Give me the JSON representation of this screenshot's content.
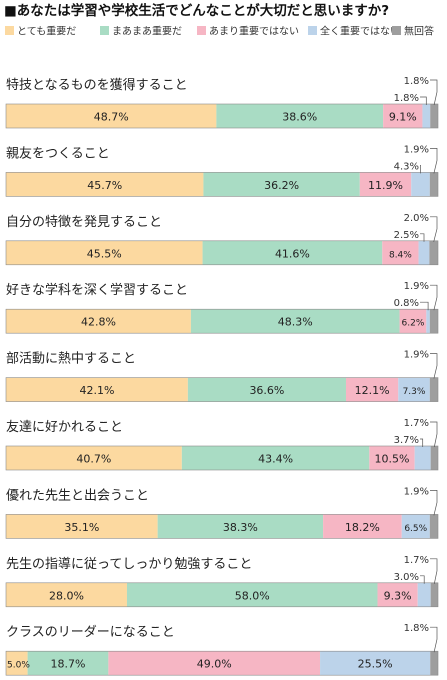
{
  "chart_data": {
    "type": "bar",
    "orientation": "horizontal-stacked-100",
    "title": "■あなたは学習や学校生活でどんなことが大切だと思いますか?",
    "series": [
      {
        "name": "とても重要だ",
        "color": "#fcd9a0"
      },
      {
        "name": "まあまあ重要だ",
        "color": "#a9dcc4"
      },
      {
        "name": "あまり重要ではない",
        "color": "#f6b6c4"
      },
      {
        "name": "全く重要ではない",
        "color": "#bcd3ea"
      },
      {
        "name": "無回答",
        "color": "#9e9e9e"
      }
    ],
    "categories": [
      {
        "label": "特技となるものを獲得すること",
        "values": [
          48.7,
          38.6,
          9.1,
          1.8,
          1.8
        ],
        "labels": [
          "48.7%",
          "38.6%",
          "9.1%",
          "1.8%",
          "1.8%"
        ]
      },
      {
        "label": "親友をつくること",
        "values": [
          45.7,
          36.2,
          11.9,
          4.3,
          1.9
        ],
        "labels": [
          "45.7%",
          "36.2%",
          "11.9%",
          "4.3%",
          "1.9%"
        ]
      },
      {
        "label": "自分の特徴を発見すること",
        "values": [
          45.5,
          41.6,
          8.4,
          2.5,
          2.0
        ],
        "labels": [
          "45.5%",
          "41.6%",
          "8.4%",
          "2.5%",
          "2.0%"
        ]
      },
      {
        "label": "好きな学科を深く学習すること",
        "values": [
          42.8,
          48.3,
          6.2,
          0.8,
          1.9
        ],
        "labels": [
          "42.8%",
          "48.3%",
          "6.2%",
          "0.8%",
          "1.9%"
        ]
      },
      {
        "label": "部活動に熱中すること",
        "values": [
          42.1,
          36.6,
          12.1,
          7.3,
          1.9
        ],
        "labels": [
          "42.1%",
          "36.6%",
          "12.1%",
          "7.3%",
          "1.9%"
        ]
      },
      {
        "label": "友達に好かれること",
        "values": [
          40.7,
          43.4,
          10.5,
          3.7,
          1.7
        ],
        "labels": [
          "40.7%",
          "43.4%",
          "10.5%",
          "3.7%",
          "1.7%"
        ]
      },
      {
        "label": "優れた先生と出会うこと",
        "values": [
          35.1,
          38.3,
          18.2,
          6.5,
          1.9
        ],
        "labels": [
          "35.1%",
          "38.3%",
          "18.2%",
          "6.5%",
          "1.9%"
        ]
      },
      {
        "label": "先生の指導に従ってしっかり勉強すること",
        "values": [
          28.0,
          58.0,
          9.3,
          3.0,
          1.7
        ],
        "labels": [
          "28.0%",
          "58.0%",
          "9.3%",
          "3.0%",
          "1.7%"
        ]
      },
      {
        "label": "クラスのリーダーになること",
        "values": [
          5.0,
          18.7,
          49.0,
          25.5,
          1.8
        ],
        "labels": [
          "5.0%",
          "18.7%",
          "49.0%",
          "25.5%",
          "1.8%"
        ]
      }
    ],
    "xlim": [
      0,
      100
    ],
    "grid": false,
    "legend_position": "top"
  }
}
